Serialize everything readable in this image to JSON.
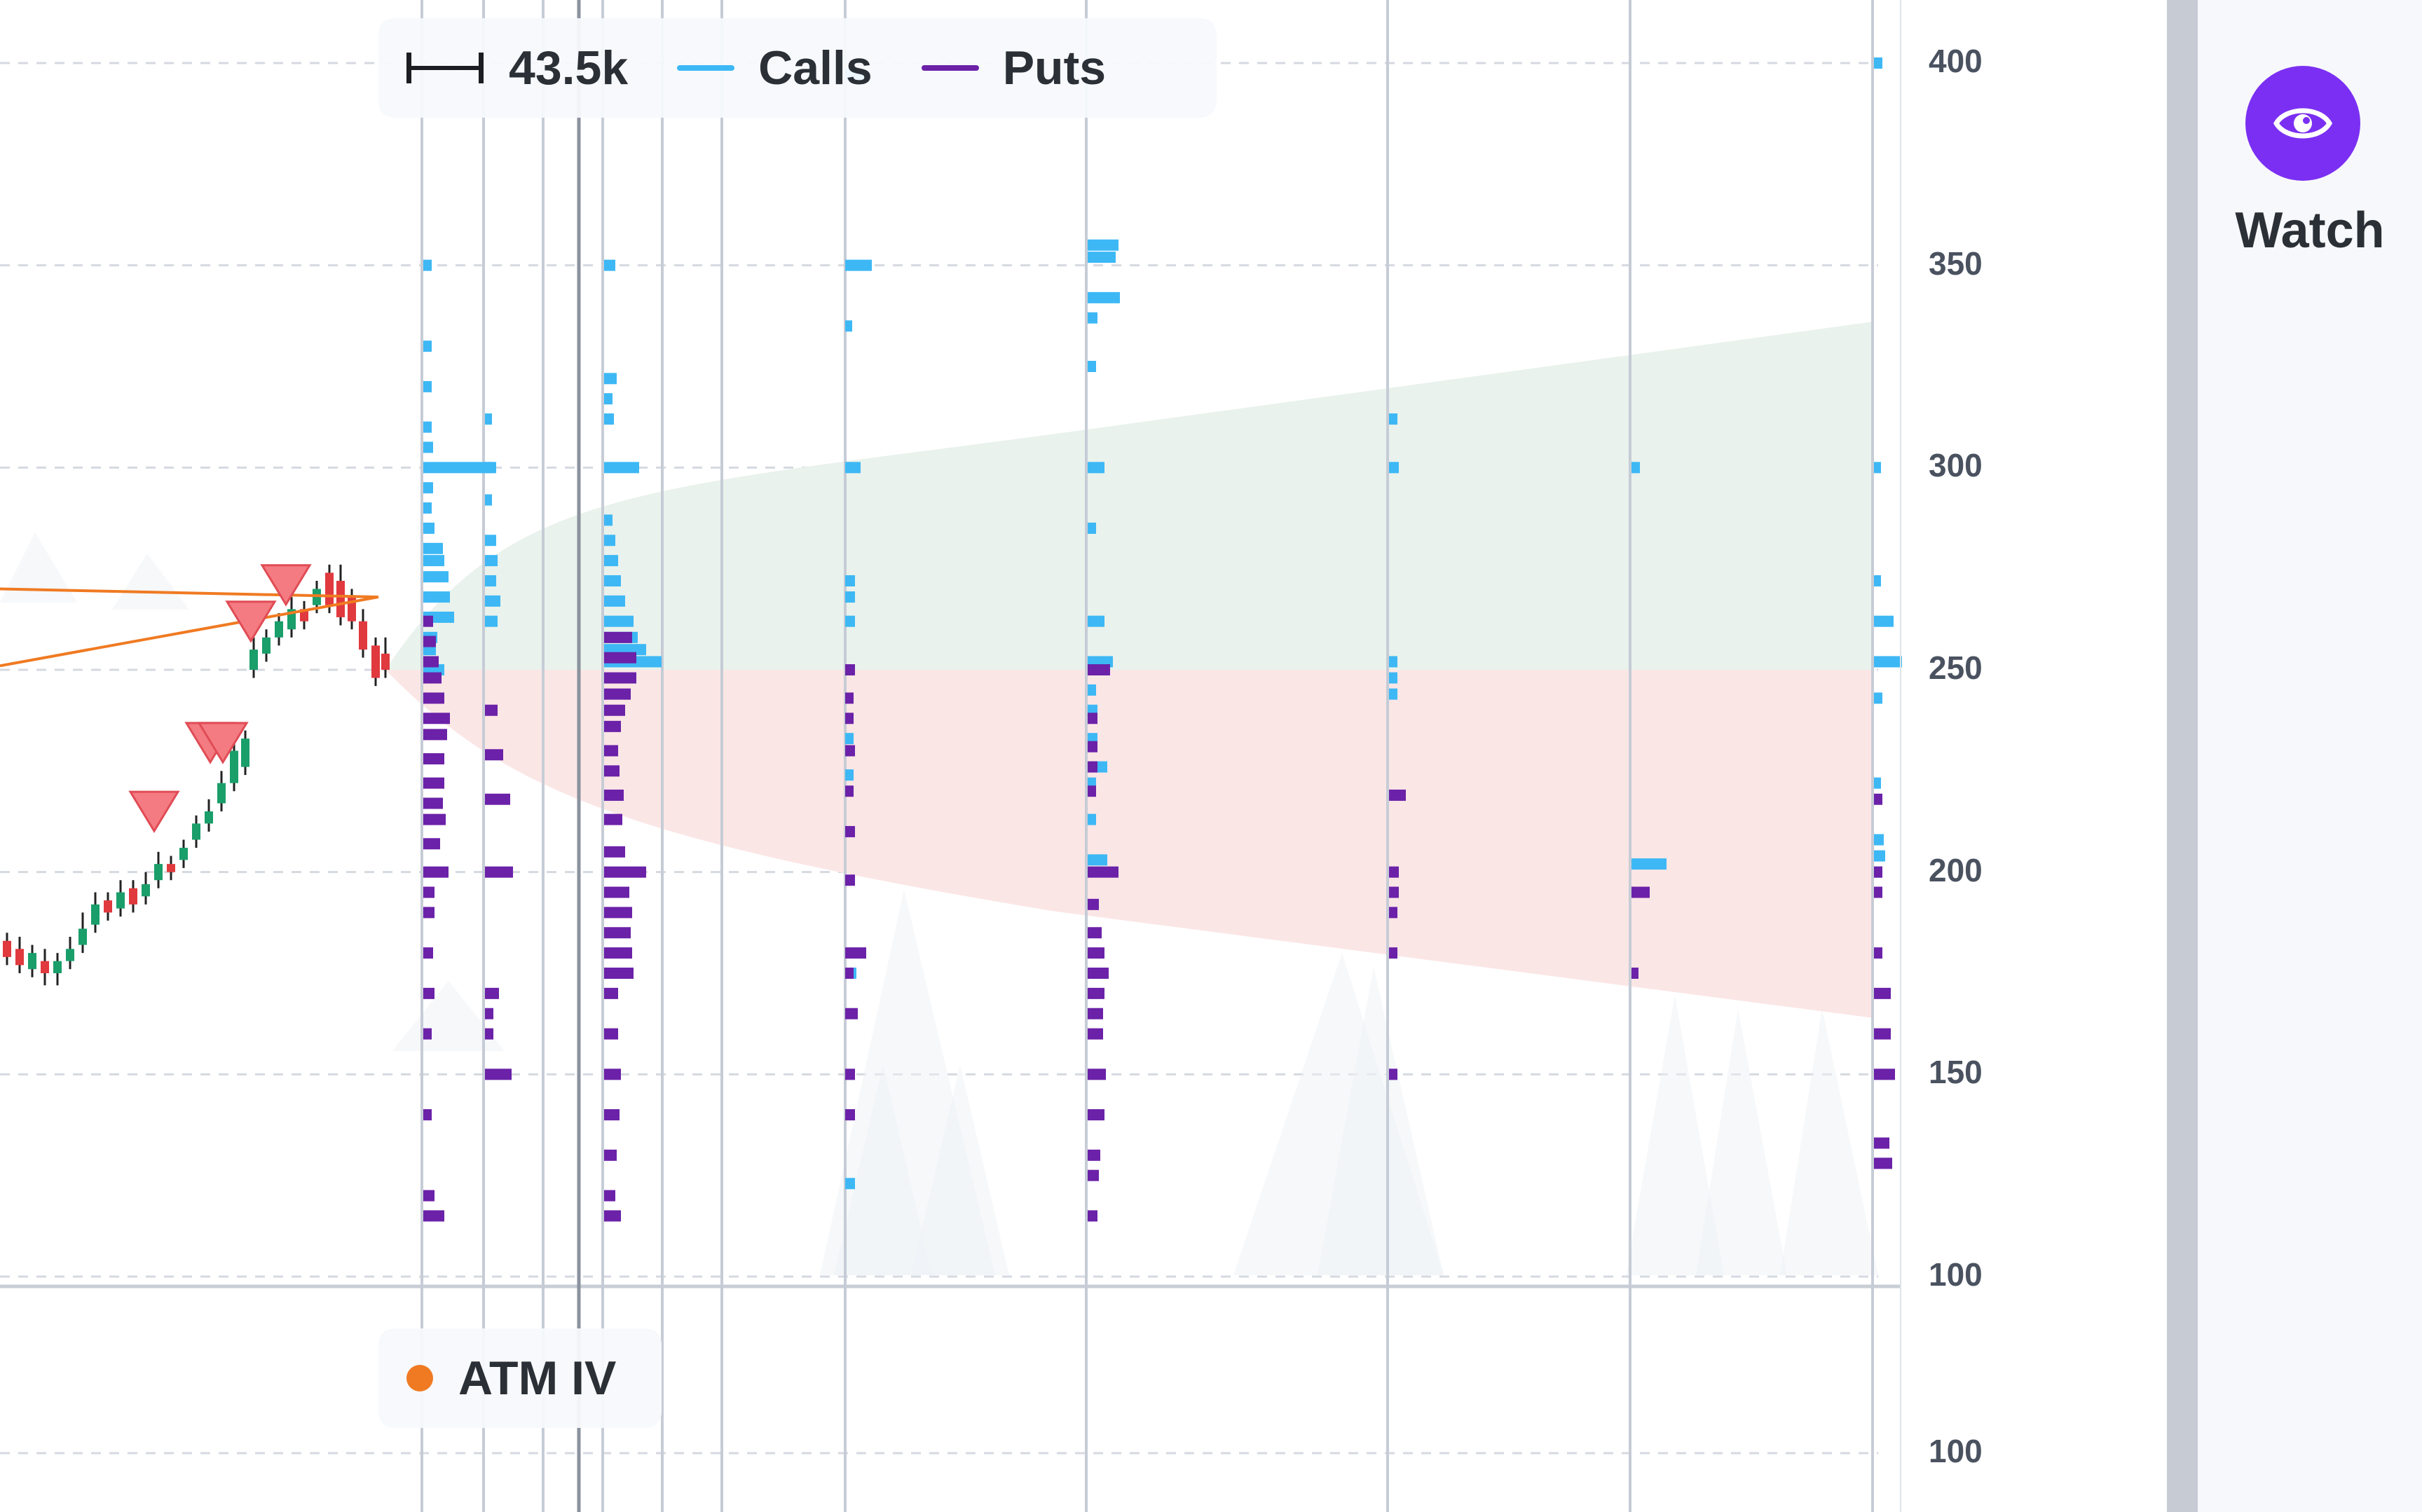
{
  "legend": {
    "scale_value": "43.5k",
    "calls_label": "Calls",
    "puts_label": "Puts",
    "scale_icon": "range-bar-icon"
  },
  "atm_legend": {
    "label": "ATM IV",
    "dot_color": "#f07a22"
  },
  "watch": {
    "label": "Watch",
    "icon": "eye-icon",
    "color": "#7b2ff2"
  },
  "colors": {
    "calls": "#3db8f5",
    "puts": "#6b21a8",
    "up_candle": "#1a9e6a",
    "down_candle": "#e0393e",
    "trendline": "#f07a22",
    "marker": "#f47b82",
    "upper_cone": "#e9f2ec",
    "lower_cone": "#fbe6e6"
  },
  "y_axis": {
    "ticks": [
      "400",
      "350",
      "300",
      "250",
      "200",
      "150",
      "100"
    ],
    "lower_tick": "100"
  },
  "chart_data": {
    "type": "bar",
    "title": "",
    "y_range": [
      100,
      400
    ],
    "expiry_columns": 11,
    "price_range_last": [
      235,
      276
    ],
    "calls_strikes_peak": [
      300,
      250,
      350
    ],
    "puts_strikes_peak": [
      250,
      200,
      220
    ],
    "current_price": 248,
    "expected_move_upper_end": 336,
    "expected_move_lower_end": 164
  }
}
